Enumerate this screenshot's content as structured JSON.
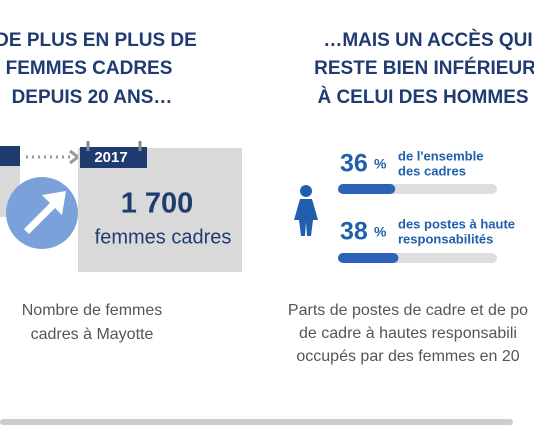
{
  "left": {
    "title": [
      "DE PLUS EN PLUS DE",
      "FEMMES CADRES",
      "DEPUIS 20 ANS…"
    ],
    "year": "2017",
    "count": "1 700",
    "count_label": "femmes cadres",
    "caption": [
      "Nombre de femmes",
      "cadres à Mayotte"
    ]
  },
  "right": {
    "title": [
      "…MAIS UN ACCÈS QUI",
      "RESTE BIEN INFÉRIEUR",
      "À CELUI DES HOMMES"
    ],
    "stats": [
      {
        "value": 36,
        "unit": "%",
        "label": [
          "de l'ensemble",
          "des cadres"
        ]
      },
      {
        "value": 38,
        "unit": "%",
        "label": [
          "des postes à haute",
          "responsabilités"
        ]
      }
    ],
    "caption": [
      "Parts de postes de cadre et de po",
      "de cadre à hautes responsabili",
      "occupés par des femmes en 20"
    ]
  }
}
